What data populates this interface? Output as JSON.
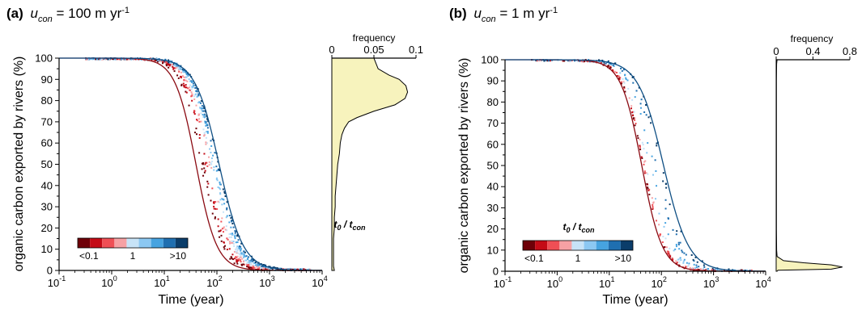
{
  "colors": {
    "red_curve": "#8b0a12",
    "blue_curve": "#0f4f84",
    "hist_fill": "#f7f3bd",
    "colorbar": [
      "#6e0008",
      "#c40b16",
      "#ef4f55",
      "#f6a1a4",
      "#c7e3f7",
      "#8cc8f2",
      "#46a3e0",
      "#1f6fb0",
      "#0b3d6a"
    ]
  },
  "chart_data": [
    {
      "type": "scatter",
      "panel": "(a)",
      "title": {
        "prefix": "(a)",
        "var": "u",
        "sub": "con",
        "mid": " = 100 m yr",
        "sup": "-1"
      },
      "xlabel": "Time (year)",
      "ylabel": "organic carbon exported by rivers (%)",
      "xscale": "log",
      "xlim": [
        0.1,
        10000
      ],
      "ylim": [
        0,
        100
      ],
      "xticks": [
        {
          "base": "10",
          "exp": "-1"
        },
        {
          "base": "10",
          "exp": "0"
        },
        {
          "base": "10",
          "exp": "1"
        },
        {
          "base": "10",
          "exp": "2"
        },
        {
          "base": "10",
          "exp": "3"
        },
        {
          "base": "10",
          "exp": "4"
        }
      ],
      "yticks": [
        "0",
        "10",
        "20",
        "30",
        "40",
        "50",
        "60",
        "70",
        "80",
        "90",
        "100"
      ],
      "curves": [
        {
          "name": "lower bound",
          "color": "red",
          "t_half": 40,
          "p": 2.2
        },
        {
          "name": "upper bound",
          "color": "blue",
          "t_half": 110,
          "p": 1.9
        }
      ],
      "scatter_band": {
        "t_half_range": [
          50,
          110
        ],
        "p_range": [
          1.9,
          2.2
        ]
      },
      "colorbar": {
        "title_base": "t",
        "title_sub1": "0",
        "title_sep": " / ",
        "title_base2": "t",
        "title_sub2": "con",
        "labels": [
          "<0.1",
          "1",
          ">10"
        ]
      },
      "histogram": {
        "xlabel": "frequency",
        "xticks": [
          "0",
          "0.05",
          "0.1"
        ],
        "xlim": [
          0,
          0.1
        ],
        "profile": [
          [
            100,
            0.05
          ],
          [
            98,
            0.052
          ],
          [
            95,
            0.055
          ],
          [
            92,
            0.068
          ],
          [
            90,
            0.08
          ],
          [
            87,
            0.088
          ],
          [
            84,
            0.09
          ],
          [
            81,
            0.087
          ],
          [
            78,
            0.075
          ],
          [
            75,
            0.05
          ],
          [
            72,
            0.03
          ],
          [
            70,
            0.02
          ],
          [
            67,
            0.015
          ],
          [
            64,
            0.012
          ],
          [
            60,
            0.01
          ],
          [
            55,
            0.009
          ],
          [
            50,
            0.007
          ],
          [
            45,
            0.006
          ],
          [
            40,
            0.005
          ],
          [
            35,
            0.004
          ],
          [
            30,
            0.004
          ],
          [
            25,
            0.003
          ],
          [
            20,
            0.003
          ],
          [
            15,
            0.002
          ],
          [
            10,
            0.002
          ],
          [
            5,
            0.002
          ],
          [
            2,
            0.002
          ],
          [
            0,
            0.003
          ]
        ]
      }
    },
    {
      "type": "scatter",
      "panel": "(b)",
      "title": {
        "prefix": "(b)",
        "var": "u",
        "sub": "con",
        "mid": " = 1 m yr",
        "sup": "-1"
      },
      "xlabel": "Time (year)",
      "ylabel": "organic carbon exported by rivers (%)",
      "xscale": "log",
      "xlim": [
        0.1,
        10000
      ],
      "ylim": [
        0,
        100
      ],
      "xticks": [
        {
          "base": "10",
          "exp": "-1"
        },
        {
          "base": "10",
          "exp": "0"
        },
        {
          "base": "10",
          "exp": "1"
        },
        {
          "base": "10",
          "exp": "2"
        },
        {
          "base": "10",
          "exp": "3"
        },
        {
          "base": "10",
          "exp": "4"
        }
      ],
      "yticks": [
        "0",
        "10",
        "20",
        "30",
        "40",
        "50",
        "60",
        "70",
        "80",
        "90",
        "100"
      ],
      "curves": [
        {
          "name": "lower bound",
          "color": "red",
          "t_half": 42,
          "p": 2.2
        },
        {
          "name": "upper bound",
          "color": "blue",
          "t_half": 110,
          "p": 1.8
        }
      ],
      "scatter_band": {
        "t_half_range": [
          45,
          110
        ],
        "p_range": [
          1.8,
          2.2
        ]
      },
      "colorbar": {
        "title_base": "t",
        "title_sub1": "0",
        "title_sep": " / ",
        "title_base2": "t",
        "title_sub2": "con",
        "labels": [
          "<0.1",
          "1",
          ">10"
        ]
      },
      "histogram": {
        "xlabel": "frequency",
        "xticks": [
          "0",
          "0.4",
          "0.8"
        ],
        "xlim": [
          0,
          0.8
        ],
        "profile": [
          [
            100,
            0.01
          ],
          [
            98,
            0.005
          ],
          [
            95,
            0.004
          ],
          [
            90,
            0.003
          ],
          [
            80,
            0.003
          ],
          [
            60,
            0.003
          ],
          [
            40,
            0.003
          ],
          [
            20,
            0.003
          ],
          [
            10,
            0.005
          ],
          [
            7,
            0.01
          ],
          [
            5,
            0.08
          ],
          [
            4,
            0.3
          ],
          [
            3,
            0.6
          ],
          [
            2,
            0.72
          ],
          [
            1,
            0.6
          ],
          [
            0.5,
            0.02
          ],
          [
            0,
            0.01
          ]
        ]
      }
    }
  ]
}
